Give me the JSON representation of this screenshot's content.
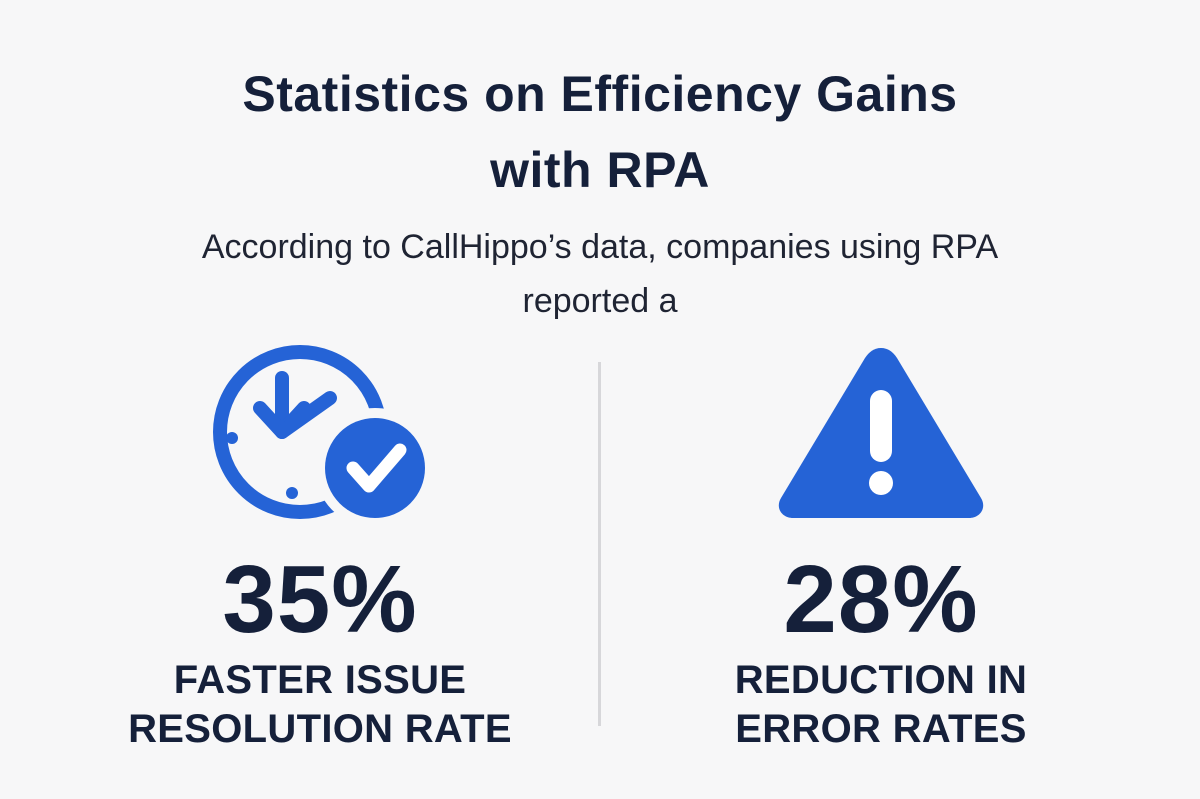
{
  "title": {
    "line1": "Statistics on Efficiency Gains",
    "line2": "with RPA"
  },
  "subtitle": {
    "line1": "According to CallHippo’s data, companies using RPA",
    "line2": "reported a"
  },
  "stats": [
    {
      "icon": "clock-check-icon",
      "value": "35%",
      "label_line1": "FASTER ISSUE",
      "label_line2": "RESOLUTION RATE"
    },
    {
      "icon": "warning-icon",
      "value": "28%",
      "label_line1": "REDUCTION IN",
      "label_line2": "ERROR RATES"
    }
  ],
  "colors": {
    "accent": "#2563d6",
    "text": "#15203a",
    "background": "#f7f7f8",
    "divider": "#d7d7da"
  }
}
